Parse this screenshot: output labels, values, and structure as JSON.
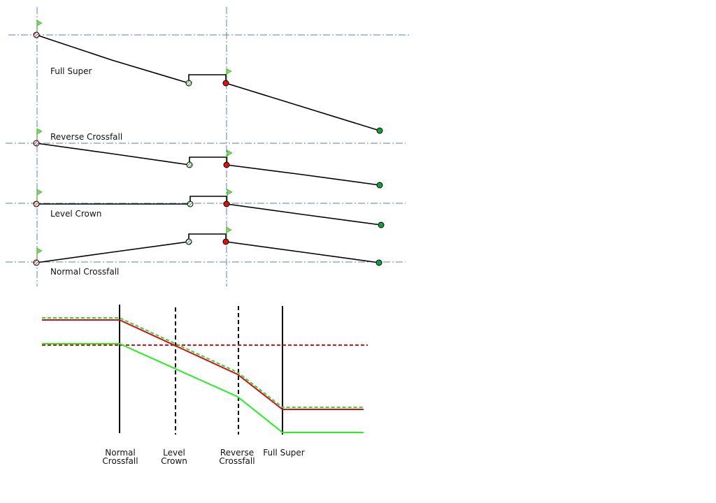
{
  "sections": [
    {
      "label": "Full Super"
    },
    {
      "label": "Reverse Crossfall"
    },
    {
      "label": "Level Crown"
    },
    {
      "label": "Normal Crossfall"
    }
  ],
  "stations": [
    {
      "lines": [
        "Normal",
        "Crossfall"
      ]
    },
    {
      "lines": [
        "Level",
        "Crown"
      ]
    },
    {
      "lines": [
        "Reverse",
        "Crossfall"
      ]
    },
    {
      "lines": [
        "Full Super"
      ]
    }
  ]
}
